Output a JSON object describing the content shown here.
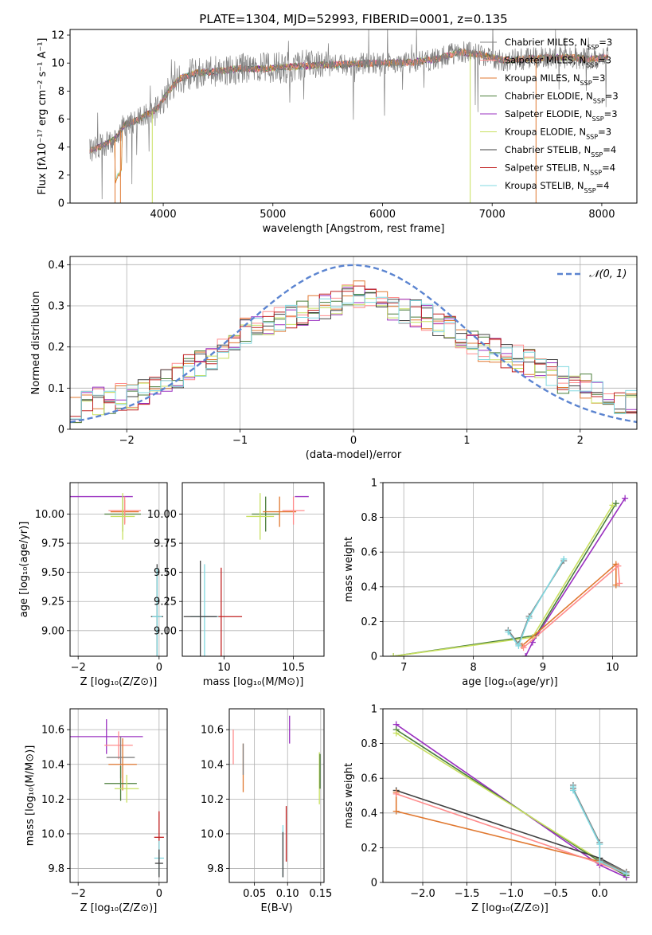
{
  "colors": {
    "chabrier_miles": "#808080",
    "salpeter_miles": "#ff8c8c",
    "kroupa_miles": "#e07830",
    "chabrier_elodie": "#4a7d3a",
    "salpeter_elodie": "#9a30c0",
    "kroupa_elodie": "#c8e060",
    "chabrier_stelib": "#404040",
    "salpeter_stelib": "#c02020",
    "kroupa_stelib": "#80d8e0",
    "gaussian": "#5b84d0"
  },
  "chart_data": [
    {
      "id": "spectrum",
      "type": "line",
      "title": "PLATE=1304, MJD=52993, FIBERID=0001, z=0.135",
      "xlabel": "wavelength [Angstrom, rest frame]",
      "ylabel": "Flux [fλ10⁻¹⁷ erg cm⁻² s⁻¹ A⁻¹]",
      "xlim": [
        3150,
        8320
      ],
      "ylim": [
        0,
        12.4
      ],
      "xticks": [
        4000,
        5000,
        6000,
        7000,
        8000
      ],
      "yticks": [
        0,
        2,
        4,
        6,
        8,
        10,
        12
      ],
      "grid": false,
      "legend_position": "upper-right",
      "series": [
        {
          "name": "Chabrier MILES, N_SSP=3",
          "color_key": "chabrier_miles"
        },
        {
          "name": "Salpeter MILES, N_SSP=3",
          "color_key": "salpeter_miles"
        },
        {
          "name": "Kroupa MILES, N_SSP=3",
          "color_key": "kroupa_miles"
        },
        {
          "name": "Chabrier ELODIE, N_SSP=3",
          "color_key": "chabrier_elodie"
        },
        {
          "name": "Salpeter ELODIE, N_SSP=3",
          "color_key": "salpeter_elodie"
        },
        {
          "name": "Kroupa ELODIE, N_SSP=3",
          "color_key": "kroupa_elodie"
        },
        {
          "name": "Chabrier STELIB, N_SSP=4",
          "color_key": "chabrier_stelib"
        },
        {
          "name": "Salpeter STELIB, N_SSP=4",
          "color_key": "salpeter_stelib"
        },
        {
          "name": "Kroupa STELIB, N_SSP=4",
          "color_key": "kroupa_stelib"
        }
      ],
      "data": {
        "x": [
          3350,
          3450,
          3550,
          3650,
          3750,
          3850,
          3950,
          4050,
          4150,
          4300,
          4500,
          4700,
          4900,
          5100,
          5300,
          5500,
          5700,
          5900,
          6100,
          6300,
          6500,
          6700,
          6900,
          7100,
          7300,
          7500,
          7700,
          7900,
          8050
        ],
        "model": [
          3.8,
          4.1,
          4.5,
          5.6,
          5.9,
          6.3,
          6.8,
          8.0,
          8.9,
          9.3,
          9.4,
          9.6,
          9.6,
          9.7,
          9.8,
          9.9,
          9.9,
          10.0,
          10.0,
          10.1,
          10.3,
          10.8,
          10.6,
          10.2,
          10.3,
          10.4,
          10.4,
          10.3,
          10.4
        ]
      }
    },
    {
      "id": "residuals",
      "type": "line",
      "xlabel": "(data-model)/error",
      "ylabel": "Normed distribution",
      "xlim": [
        -2.5,
        2.5
      ],
      "ylim": [
        0,
        0.42
      ],
      "xticks": [
        -2,
        -1,
        0,
        1,
        2
      ],
      "yticks": [
        0.0,
        0.1,
        0.2,
        0.3,
        0.4
      ],
      "grid": true,
      "legend_position": "upper-right",
      "legend": "𝒩(0, 1)",
      "gaussian": {
        "mean": 0,
        "sigma": 1
      },
      "bin_centers": [
        -2.45,
        -2.35,
        -2.25,
        -2.15,
        -2.05,
        -1.95,
        -1.85,
        -1.75,
        -1.65,
        -1.55,
        -1.45,
        -1.35,
        -1.25,
        -1.15,
        -1.05,
        -0.95,
        -0.85,
        -0.75,
        -0.65,
        -0.55,
        -0.45,
        -0.35,
        -0.25,
        -0.15,
        -0.05,
        0.05,
        0.15,
        0.25,
        0.35,
        0.45,
        0.55,
        0.65,
        0.75,
        0.85,
        0.95,
        1.05,
        1.15,
        1.25,
        1.35,
        1.45,
        1.55,
        1.65,
        1.75,
        1.85,
        1.95,
        2.05,
        2.15,
        2.25,
        2.35,
        2.45
      ],
      "hist": [
        0.05,
        0.06,
        0.07,
        0.07,
        0.08,
        0.08,
        0.09,
        0.1,
        0.12,
        0.13,
        0.15,
        0.16,
        0.18,
        0.2,
        0.22,
        0.24,
        0.25,
        0.26,
        0.27,
        0.28,
        0.28,
        0.29,
        0.3,
        0.31,
        0.32,
        0.33,
        0.32,
        0.31,
        0.3,
        0.29,
        0.28,
        0.27,
        0.26,
        0.24,
        0.23,
        0.21,
        0.2,
        0.19,
        0.18,
        0.17,
        0.16,
        0.15,
        0.14,
        0.12,
        0.11,
        0.1,
        0.09,
        0.08,
        0.07,
        0.06
      ]
    },
    {
      "id": "age_vs_z",
      "type": "scatter",
      "xlabel": "Z [log₁₀(Z/Z⊙)]",
      "ylabel": "age  [log₁₀(age/yr)]",
      "xlim": [
        -2.2,
        0.2
      ],
      "ylim": [
        8.78,
        10.27
      ],
      "xticks": [
        -2,
        0
      ],
      "yticks": [
        9.0,
        9.25,
        9.5,
        9.75,
        10.0
      ],
      "ytick_labels": [
        "9.00",
        "9.25",
        "9.50",
        "9.75",
        "10.00"
      ],
      "grid": true,
      "points": [
        {
          "x": -2.0,
          "y": 10.15,
          "xerr": 1.35,
          "yerr": 0,
          "color_key": "salpeter_elodie"
        },
        {
          "x": -0.9,
          "y": 10.0,
          "xerr": 0.45,
          "yerr": 0.15,
          "color_key": "chabrier_elodie"
        },
        {
          "x": -0.85,
          "y": 10.02,
          "xerr": 0.35,
          "yerr": 0.1,
          "color_key": "kroupa_miles"
        },
        {
          "x": -0.85,
          "y": 10.03,
          "xerr": 0.4,
          "yerr": 0.12,
          "color_key": "salpeter_miles"
        },
        {
          "x": -0.9,
          "y": 9.98,
          "xerr": 0.3,
          "yerr": 0.2,
          "color_key": "kroupa_elodie"
        },
        {
          "x": -0.05,
          "y": 9.12,
          "xerr": 0.15,
          "yerr": 0.45,
          "color_key": "chabrier_stelib"
        },
        {
          "x": -0.05,
          "y": 9.12,
          "xerr": 0.12,
          "yerr": 0.42,
          "color_key": "kroupa_stelib"
        }
      ]
    },
    {
      "id": "age_vs_mass",
      "type": "scatter",
      "xlabel": "mass [log₁₀(M/M⊙)]",
      "ylabel": "",
      "xlim": [
        9.7,
        10.72
      ],
      "ylim": [
        8.78,
        10.27
      ],
      "xticks": [
        10.0,
        10.5
      ],
      "yticks": [
        9.0,
        9.25,
        9.5,
        9.75,
        10.0
      ],
      "ytick_labels": [
        "9.00",
        "9.25",
        "9.50",
        "9.75",
        "10.00"
      ],
      "grid": true,
      "points": [
        {
          "x": 10.56,
          "y": 10.15,
          "xerr": 0.05,
          "yerr": 0.0,
          "color_key": "salpeter_elodie"
        },
        {
          "x": 10.3,
          "y": 10.0,
          "xerr": 0.1,
          "yerr": 0.15,
          "color_key": "chabrier_elodie"
        },
        {
          "x": 10.4,
          "y": 10.02,
          "xerr": 0.12,
          "yerr": 0.13,
          "color_key": "kroupa_miles"
        },
        {
          "x": 10.5,
          "y": 10.03,
          "xerr": 0.08,
          "yerr": 0.12,
          "color_key": "salpeter_miles"
        },
        {
          "x": 10.26,
          "y": 9.98,
          "xerr": 0.1,
          "yerr": 0.2,
          "color_key": "kroupa_elodie"
        },
        {
          "x": 9.98,
          "y": 9.12,
          "xerr": 0.15,
          "yerr": 0.42,
          "color_key": "salpeter_stelib"
        },
        {
          "x": 9.86,
          "y": 9.12,
          "xerr": 0.1,
          "yerr": 0.45,
          "color_key": "kroupa_stelib"
        },
        {
          "x": 9.83,
          "y": 9.12,
          "xerr": 0.12,
          "yerr": 0.48,
          "color_key": "chabrier_stelib"
        }
      ]
    },
    {
      "id": "weight_vs_age",
      "type": "line",
      "xlabel": "age  [log₁₀(age/yr)]",
      "ylabel": "mass weight",
      "xlim": [
        6.7,
        10.35
      ],
      "ylim": [
        0,
        1.0
      ],
      "xticks": [
        7,
        8,
        9,
        10
      ],
      "yticks": [
        0.0,
        0.2,
        0.4,
        0.6,
        0.8,
        1.0
      ],
      "grid": true,
      "lines": [
        {
          "color_key": "chabrier_elodie",
          "x": [
            6.85,
            8.9,
            10.05
          ],
          "y": [
            0.0,
            0.12,
            0.88
          ]
        },
        {
          "color_key": "kroupa_elodie",
          "x": [
            6.85,
            8.85,
            10.0
          ],
          "y": [
            0.0,
            0.11,
            0.87
          ]
        },
        {
          "color_key": "salpeter_elodie",
          "x": [
            8.75,
            8.85,
            10.18
          ],
          "y": [
            0.0,
            0.08,
            0.91
          ]
        },
        {
          "color_key": "kroupa_miles",
          "x": [
            8.7,
            10.05,
            10.05
          ],
          "y": [
            0.06,
            0.53,
            0.41
          ]
        },
        {
          "color_key": "salpeter_miles",
          "x": [
            8.72,
            10.08,
            10.1
          ],
          "y": [
            0.05,
            0.52,
            0.42
          ]
        },
        {
          "color_key": "chabrier_miles",
          "x": [
            8.5,
            8.65,
            8.8,
            9.3
          ],
          "y": [
            0.15,
            0.07,
            0.23,
            0.55
          ]
        },
        {
          "color_key": "kroupa_stelib",
          "x": [
            8.5,
            8.65,
            8.8,
            9.3
          ],
          "y": [
            0.14,
            0.06,
            0.22,
            0.56
          ]
        }
      ]
    },
    {
      "id": "mass_vs_z",
      "type": "scatter",
      "xlabel": "Z [log₁₀(Z/Z⊙)]",
      "ylabel": "mass [log₁₀(M/M⊙)]",
      "xlim": [
        -2.2,
        0.2
      ],
      "ylim": [
        9.72,
        10.72
      ],
      "xticks": [
        -2,
        0
      ],
      "yticks": [
        9.8,
        10.0,
        10.2,
        10.4,
        10.6
      ],
      "ytick_labels": [
        "9.8",
        "10.0",
        "10.2",
        "10.4",
        "10.6"
      ],
      "grid": true,
      "points": [
        {
          "x": -1.3,
          "y": 10.56,
          "xerr": 0.9,
          "yerr": 0.1,
          "color_key": "salpeter_elodie"
        },
        {
          "x": -1.0,
          "y": 10.51,
          "xerr": 0.35,
          "yerr": 0.08,
          "color_key": "salpeter_miles"
        },
        {
          "x": -0.95,
          "y": 10.44,
          "xerr": 0.35,
          "yerr": 0.12,
          "color_key": "chabrier_miles"
        },
        {
          "x": -0.9,
          "y": 10.4,
          "xerr": 0.35,
          "yerr": 0.15,
          "color_key": "kroupa_miles"
        },
        {
          "x": -0.95,
          "y": 10.29,
          "xerr": 0.4,
          "yerr": 0.1,
          "color_key": "chabrier_elodie"
        },
        {
          "x": -0.8,
          "y": 10.26,
          "xerr": 0.3,
          "yerr": 0.08,
          "color_key": "kroupa_elodie"
        },
        {
          "x": 0.0,
          "y": 9.98,
          "xerr": 0.12,
          "yerr": 0.15,
          "color_key": "salpeter_stelib"
        },
        {
          "x": 0.0,
          "y": 9.86,
          "xerr": 0.12,
          "yerr": 0.1,
          "color_key": "kroupa_stelib"
        },
        {
          "x": 0.0,
          "y": 9.83,
          "xerr": 0.1,
          "yerr": 0.08,
          "color_key": "chabrier_stelib"
        }
      ]
    },
    {
      "id": "mass_vs_ebv",
      "type": "scatter",
      "xlabel": "E(B-V)",
      "ylabel": "",
      "xlim": [
        0.012,
        0.155
      ],
      "ylim": [
        9.72,
        10.72
      ],
      "xticks": [
        0.05,
        0.1,
        0.15
      ],
      "xtick_labels": [
        "0.05",
        "0.10",
        "0.15"
      ],
      "yticks": [
        9.8,
        10.0,
        10.2,
        10.4,
        10.6
      ],
      "ytick_labels": [
        "9.8",
        "10.0",
        "10.2",
        "10.4",
        "10.6"
      ],
      "grid": true,
      "points": [
        {
          "x": 0.018,
          "y": 10.5,
          "xerr": 0,
          "yerr": 0.1,
          "color_key": "salpeter_miles"
        },
        {
          "x": 0.033,
          "y": 10.38,
          "xerr": 0,
          "yerr": 0.14,
          "color_key": "kroupa_miles"
        },
        {
          "x": 0.033,
          "y": 10.43,
          "xerr": 0,
          "yerr": 0.09,
          "color_key": "chabrier_miles"
        },
        {
          "x": 0.103,
          "y": 10.6,
          "xerr": 0,
          "yerr": 0.08,
          "color_key": "salpeter_elodie"
        },
        {
          "x": 0.098,
          "y": 10.0,
          "xerr": 0,
          "yerr": 0.16,
          "color_key": "salpeter_stelib"
        },
        {
          "x": 0.093,
          "y": 9.9,
          "xerr": 0,
          "yerr": 0.15,
          "color_key": "kroupa_stelib"
        },
        {
          "x": 0.093,
          "y": 9.88,
          "xerr": 0,
          "yerr": 0.13,
          "color_key": "chabrier_stelib"
        },
        {
          "x": 0.148,
          "y": 10.32,
          "xerr": 0,
          "yerr": 0.15,
          "color_key": "kroupa_elodie"
        },
        {
          "x": 0.149,
          "y": 10.36,
          "xerr": 0,
          "yerr": 0.1,
          "color_key": "chabrier_elodie"
        }
      ]
    },
    {
      "id": "weight_vs_z",
      "type": "line",
      "xlabel": "Z [log₁₀(Z/Z⊙)]",
      "ylabel": "mass weight",
      "xlim": [
        -2.45,
        0.42
      ],
      "ylim": [
        0,
        1.0
      ],
      "xticks": [
        -2.0,
        -1.5,
        -1.0,
        -0.5,
        0.0
      ],
      "xtick_labels": [
        "−2.0",
        "−1.5",
        "−1.0",
        "−0.5",
        "0.0"
      ],
      "yticks": [
        0.0,
        0.2,
        0.4,
        0.6,
        0.8,
        1.0
      ],
      "grid": true,
      "lines": [
        {
          "color_key": "salpeter_elodie",
          "x": [
            -2.3,
            0.0,
            0.3
          ],
          "y": [
            0.91,
            0.1,
            0.03
          ]
        },
        {
          "color_key": "chabrier_elodie",
          "x": [
            -2.3,
            0.0,
            0.3
          ],
          "y": [
            0.88,
            0.12,
            0.04
          ]
        },
        {
          "color_key": "kroupa_elodie",
          "x": [
            -2.3,
            0.0,
            0.3
          ],
          "y": [
            0.86,
            0.13,
            0.05
          ]
        },
        {
          "color_key": "chabrier_stelib",
          "x": [
            -2.3,
            0.0,
            0.3
          ],
          "y": [
            0.53,
            0.14,
            0.06
          ]
        },
        {
          "color_key": "kroupa_miles",
          "x": [
            -2.3,
            -2.3,
            0.0,
            0.3
          ],
          "y": [
            0.52,
            0.41,
            0.12,
            0.06
          ]
        },
        {
          "color_key": "salpeter_miles",
          "x": [
            -2.3,
            0.0,
            0.3
          ],
          "y": [
            0.51,
            0.11,
            0.05
          ]
        },
        {
          "color_key": "chabrier_miles",
          "x": [
            -0.3,
            -0.3,
            0.0,
            0.0,
            0.3
          ],
          "y": [
            0.56,
            0.54,
            0.23,
            0.13,
            0.06
          ]
        },
        {
          "color_key": "kroupa_stelib",
          "x": [
            -0.3,
            -0.3,
            0.0,
            0.0,
            0.3
          ],
          "y": [
            0.55,
            0.53,
            0.22,
            0.12,
            0.05
          ]
        }
      ]
    }
  ]
}
